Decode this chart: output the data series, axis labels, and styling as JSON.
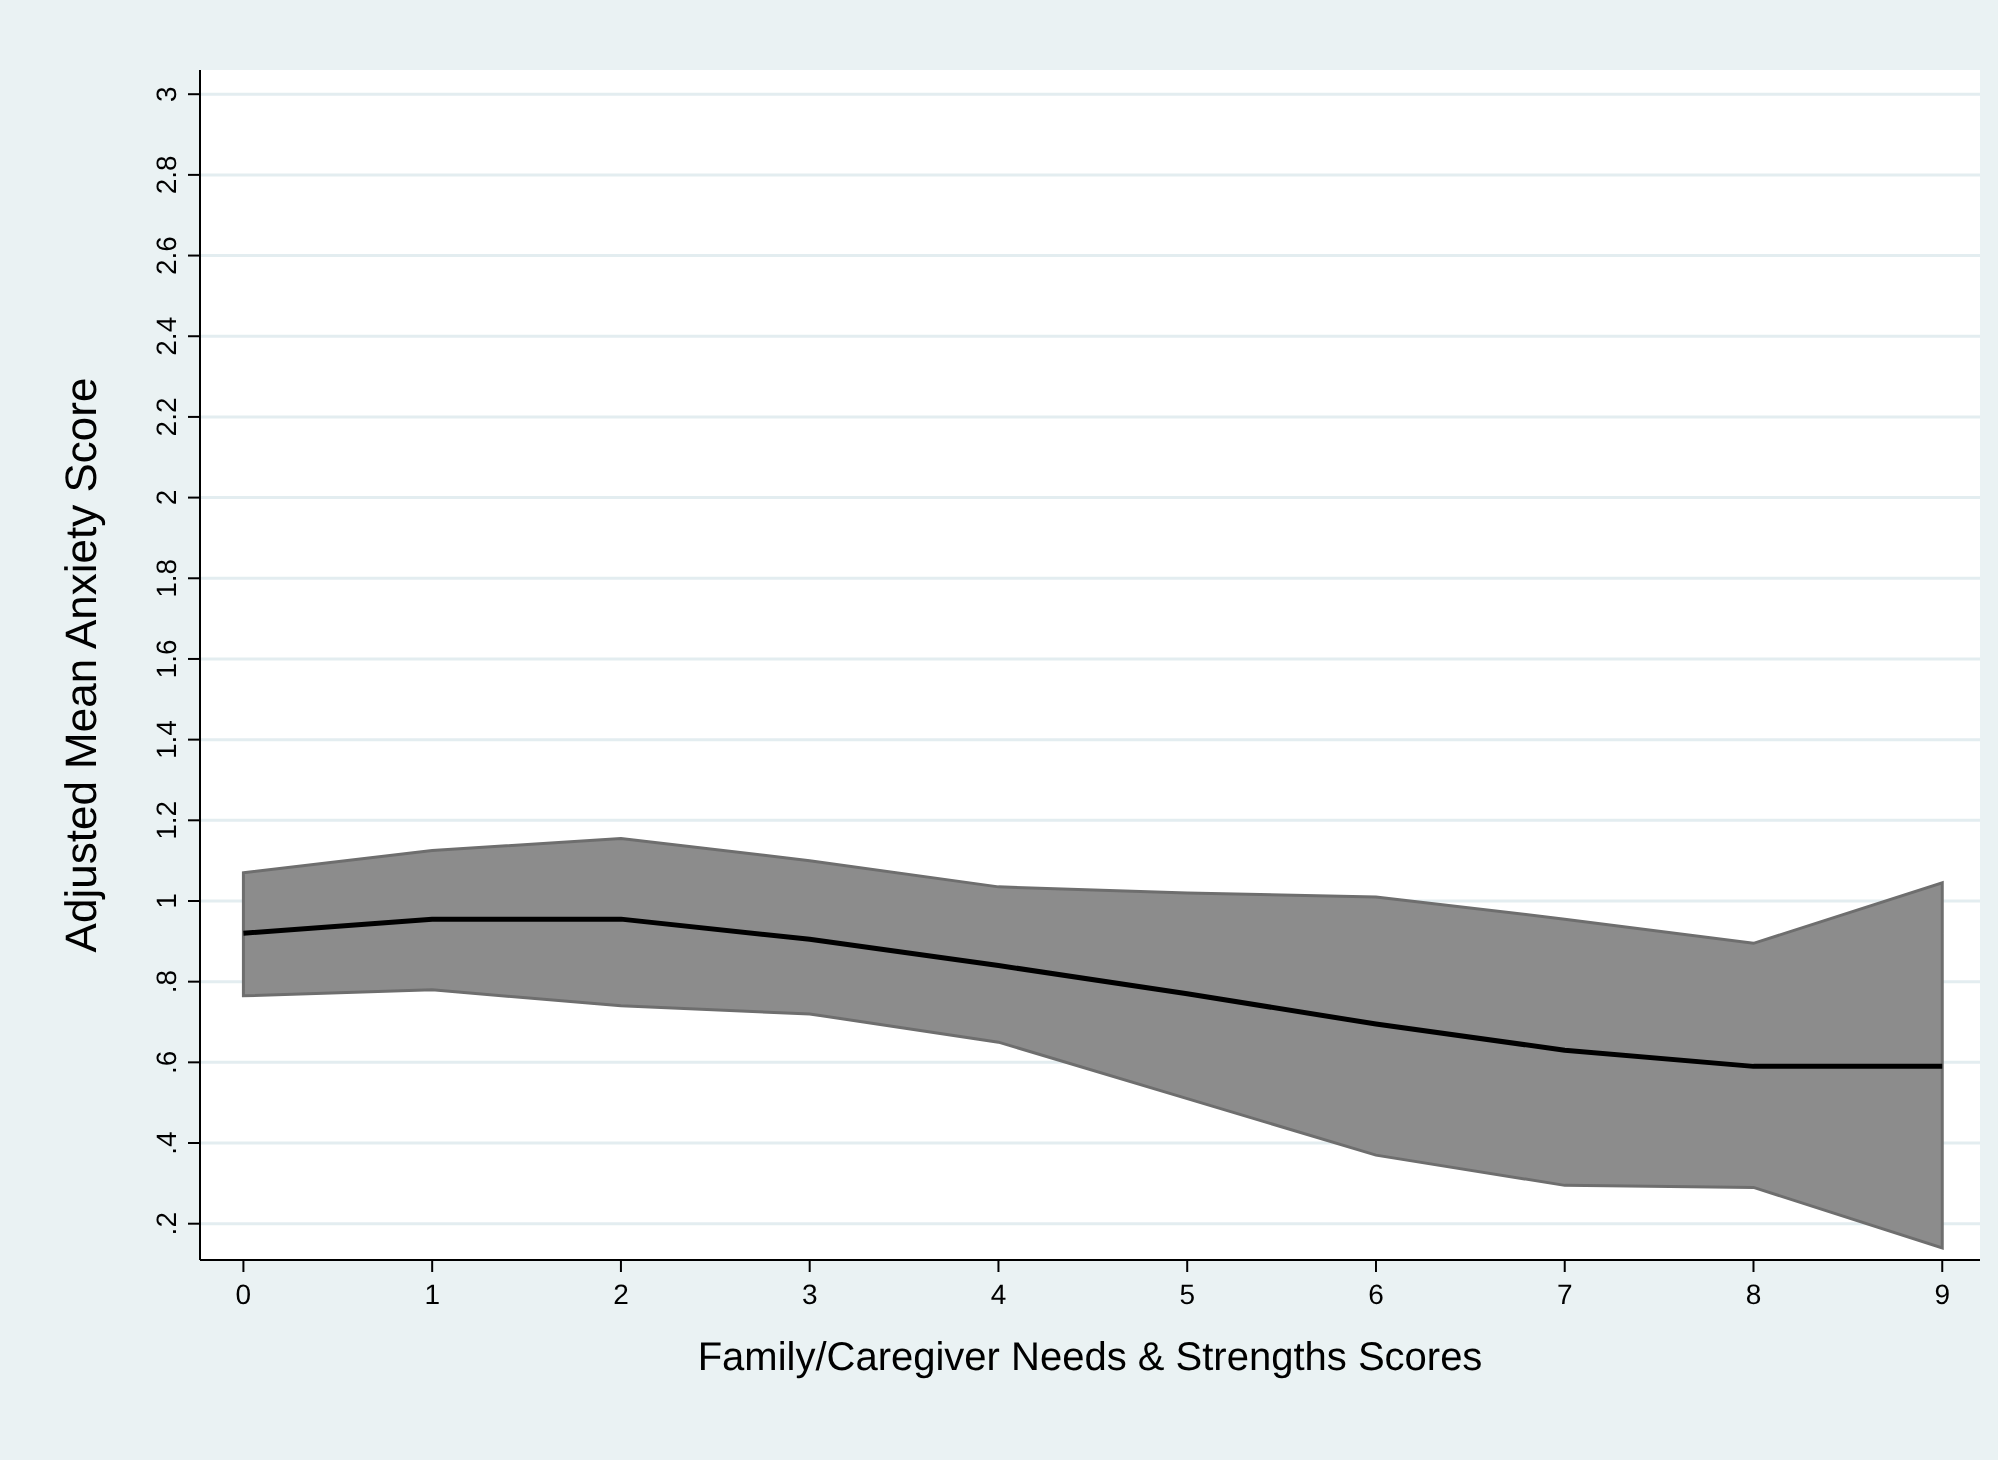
{
  "chart_data": {
    "type": "line",
    "xlabel": "Family/Caregiver Needs & Strengths Scores",
    "ylabel": "Adjusted Mean Anxiety Score",
    "x": [
      0,
      1,
      2,
      3,
      4,
      5,
      6,
      7,
      8,
      9
    ],
    "series": [
      {
        "color": "#000000",
        "values": [
          0.92,
          0.955,
          0.955,
          0.905,
          0.84,
          0.77,
          0.695,
          0.63,
          0.59,
          0.59
        ],
        "lower": [
          0.765,
          0.78,
          0.74,
          0.72,
          0.65,
          0.51,
          0.37,
          0.295,
          0.29,
          0.14
        ],
        "upper": [
          1.07,
          1.125,
          1.155,
          1.1,
          1.035,
          1.02,
          1.01,
          0.955,
          0.895,
          1.045
        ]
      }
    ],
    "xlim": [
      -0.23,
      9.2
    ],
    "xticks": [
      0,
      1,
      2,
      3,
      4,
      5,
      6,
      7,
      8,
      9
    ],
    "ylim": [
      0.11,
      3.06
    ],
    "yticks": [
      {
        "value": 0.2,
        "label": ".2"
      },
      {
        "value": 0.4,
        "label": ".4"
      },
      {
        "value": 0.6,
        "label": ".6"
      },
      {
        "value": 0.8,
        "label": ".8"
      },
      1,
      1.2,
      1.4,
      1.6,
      1.8,
      2,
      2.2,
      2.4,
      2.6,
      2.8,
      3
    ],
    "grid": "y",
    "line_style": "solid"
  }
}
